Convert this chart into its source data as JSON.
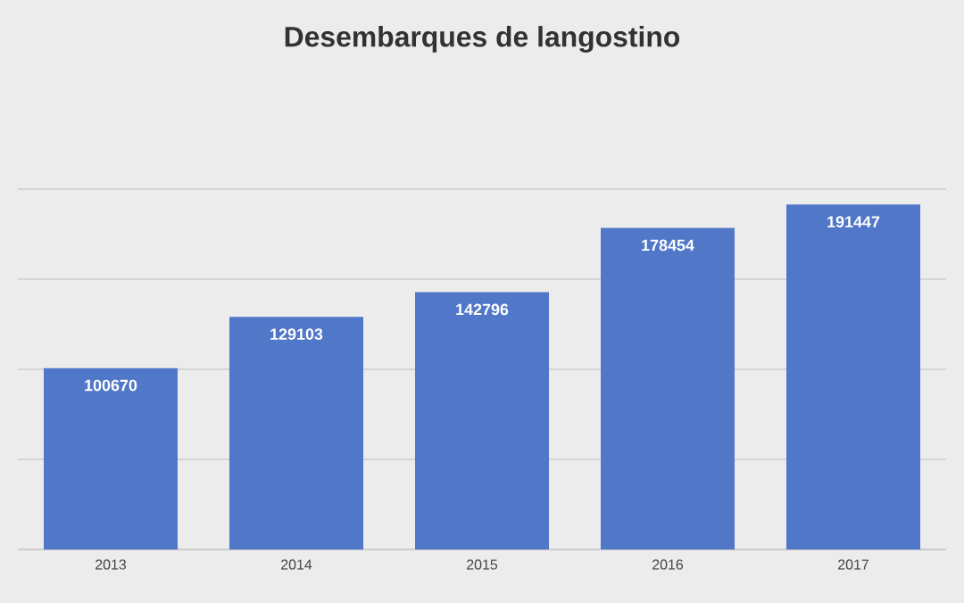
{
  "chart_data": {
    "type": "bar",
    "title": "Desembarques de langostino",
    "categories": [
      "2013",
      "2014",
      "2015",
      "2016",
      "2017"
    ],
    "values": [
      100670,
      129103,
      142796,
      178454,
      191447
    ],
    "color": "#5177c9",
    "ylim": [
      0,
      200000
    ],
    "yticks": [
      {
        "value": 0,
        "label": null
      },
      {
        "value": 50000,
        "label": null
      },
      {
        "value": 100000,
        "label": null
      },
      {
        "value": 150000,
        "label": null
      },
      {
        "value": 200000,
        "label": null
      }
    ],
    "grid": "y",
    "data_labels": true,
    "tick_labels": "x"
  }
}
